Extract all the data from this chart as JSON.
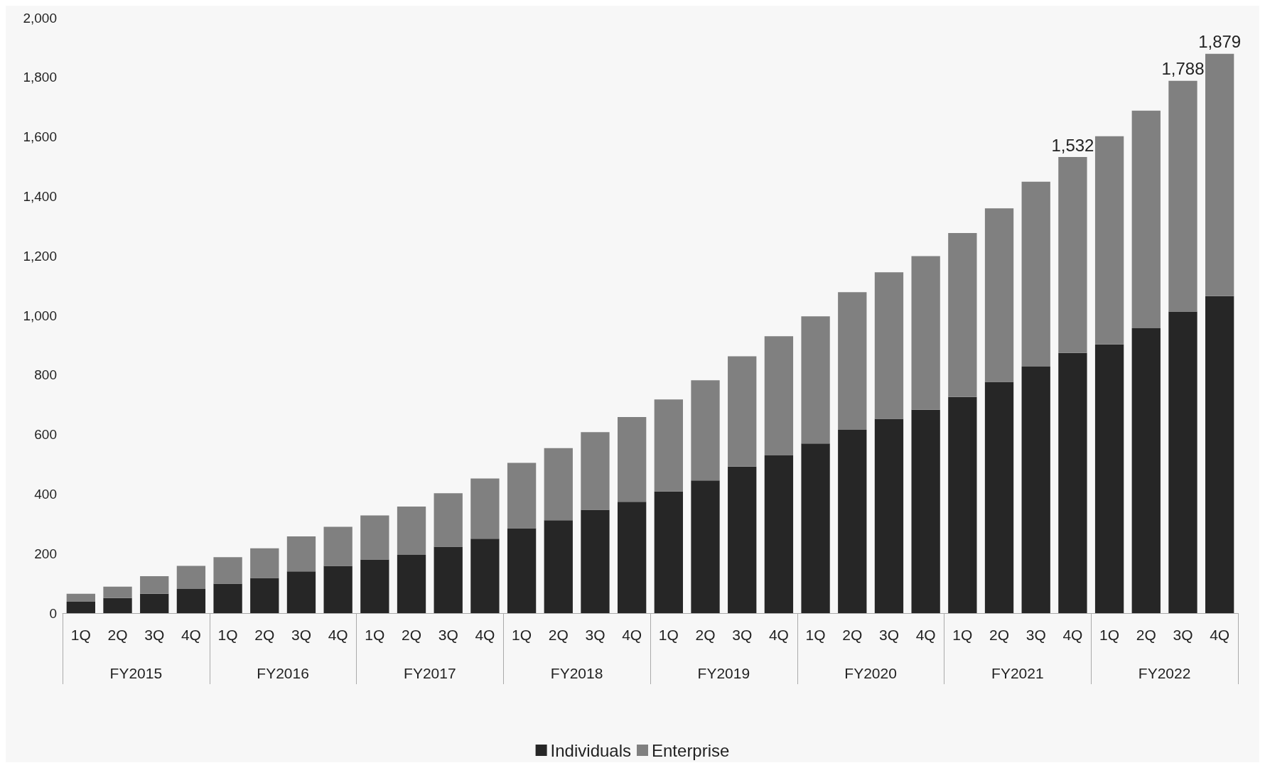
{
  "chart_data": {
    "type": "bar",
    "stacked": true,
    "categories": [
      "1Q",
      "2Q",
      "3Q",
      "4Q",
      "1Q",
      "2Q",
      "3Q",
      "4Q",
      "1Q",
      "2Q",
      "3Q",
      "4Q",
      "1Q",
      "2Q",
      "3Q",
      "4Q",
      "1Q",
      "2Q",
      "3Q",
      "4Q",
      "1Q",
      "2Q",
      "3Q",
      "4Q",
      "1Q",
      "2Q",
      "3Q",
      "4Q",
      "1Q",
      "2Q",
      "3Q",
      "4Q"
    ],
    "series": [
      {
        "name": "Individuals",
        "color": "#262626",
        "values": [
          38,
          51,
          65,
          81,
          99,
          118,
          140,
          159,
          180,
          196,
          223,
          250,
          285,
          312,
          347,
          374,
          409,
          446,
          492,
          530,
          570,
          616,
          653,
          683,
          726,
          777,
          828,
          874,
          903,
          957,
          1013,
          1065
        ]
      },
      {
        "name": "Enterprise",
        "color": "#808080",
        "values": [
          27,
          38,
          59,
          78,
          89,
          100,
          118,
          131,
          148,
          162,
          180,
          202,
          220,
          242,
          261,
          285,
          309,
          336,
          371,
          400,
          427,
          462,
          492,
          516,
          551,
          583,
          621,
          658,
          699,
          731,
          775,
          814
        ]
      }
    ],
    "totals": [
      null,
      null,
      null,
      null,
      null,
      null,
      null,
      null,
      null,
      null,
      null,
      null,
      null,
      null,
      null,
      null,
      null,
      null,
      null,
      null,
      null,
      null,
      null,
      null,
      null,
      null,
      null,
      "1,532",
      null,
      null,
      "1,788",
      "1,879"
    ],
    "annotations": [
      "FY2015",
      "FY2016",
      "FY2017",
      "FY2018",
      "FY2019",
      "FY2020",
      "FY2021",
      "FY2022"
    ],
    "ylim": [
      0,
      2000
    ],
    "yticks": [
      0,
      200,
      400,
      600,
      800,
      {
        "value": 1000,
        "label": "1,000"
      },
      {
        "value": 1200,
        "label": "1,200"
      },
      {
        "value": 1400,
        "label": "1,400"
      },
      {
        "value": 1600,
        "label": "1,600"
      },
      {
        "value": 1800,
        "label": "1,800"
      },
      {
        "value": 2000,
        "label": "2,000"
      }
    ],
    "grid": false,
    "legend": "bottom"
  }
}
